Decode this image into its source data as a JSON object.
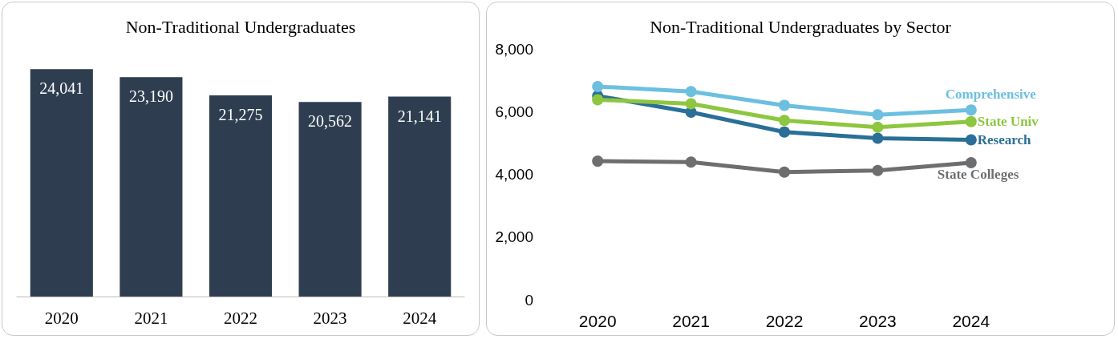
{
  "chart_data": [
    {
      "type": "bar",
      "title": "Non-Traditional Undergraduates",
      "categories": [
        "2020",
        "2021",
        "2022",
        "2023",
        "2024"
      ],
      "values": [
        24041,
        23190,
        21275,
        20562,
        21141
      ],
      "color": "#2e3e50",
      "value_labels": [
        "24,041",
        "23,190",
        "21,275",
        "20,562",
        "21,141"
      ]
    },
    {
      "type": "line",
      "title": "Non-Traditional Undergraduates by Sector",
      "categories": [
        "2020",
        "2021",
        "2022",
        "2023",
        "2024"
      ],
      "ylim": [
        0,
        8000
      ],
      "yticks": [
        0,
        {
          "value": 2000,
          "label": "2,000"
        },
        {
          "value": 4000,
          "label": "4,000"
        },
        {
          "value": 6000,
          "label": "6,000"
        },
        {
          "value": 8000,
          "label": "8,000"
        }
      ],
      "grid": false,
      "legend": false,
      "marker": "circle",
      "series": [
        {
          "name": "Comprehensive",
          "color": "#6dbfe0",
          "values": [
            6800,
            6640,
            6200,
            5900,
            6050
          ]
        },
        {
          "name": "State Univ",
          "color": "#8dc63f",
          "values": [
            6380,
            6250,
            5720,
            5500,
            5680
          ]
        },
        {
          "name": "Research",
          "color": "#2a6f97",
          "values": [
            6500,
            5980,
            5350,
            5150,
            5100
          ]
        },
        {
          "name": "State Colleges",
          "color": "#6d6e70",
          "values": [
            4420,
            4390,
            4070,
            4120,
            4370
          ]
        }
      ]
    }
  ]
}
